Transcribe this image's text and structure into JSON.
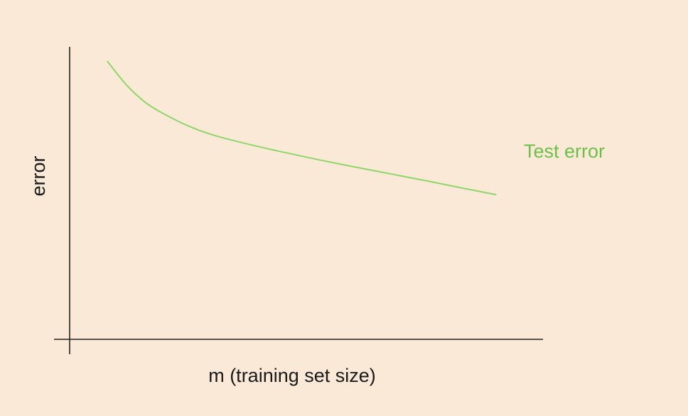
{
  "chart_data": {
    "type": "line",
    "title": "",
    "xlabel": "m (training set size)",
    "ylabel": "error",
    "grid": false,
    "ticks": false,
    "colors": {
      "background": "#fbe9d7",
      "axis": "#222222",
      "test_error": "#8ed66a",
      "test_error_label": "#6cc04a"
    },
    "xlim": [
      0,
      100
    ],
    "ylim": [
      0,
      100
    ],
    "series": [
      {
        "name": "Test error",
        "x": [
          8,
          12,
          16,
          20,
          25,
          30,
          36,
          44,
          52,
          60,
          68,
          76,
          83,
          90
        ],
        "y": [
          95,
          87,
          81,
          77,
          73,
          70,
          67.4,
          64.4,
          61.6,
          59,
          56.5,
          54,
          51.7,
          49.5
        ]
      }
    ]
  }
}
